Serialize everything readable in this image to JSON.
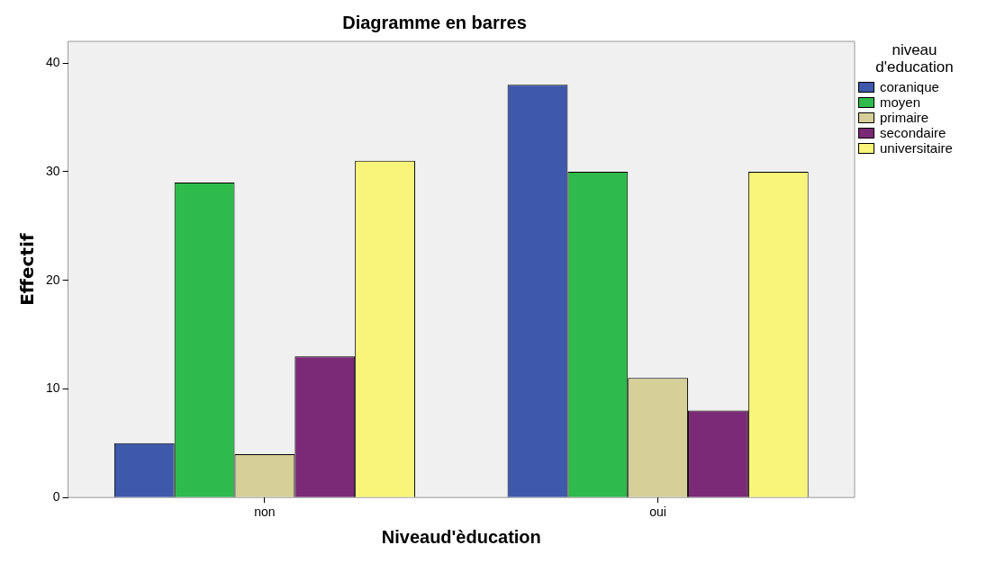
{
  "chart_data": {
    "type": "bar",
    "title": "Diagramme en barres",
    "xlabel": "Niveaud'èducation",
    "ylabel": "Effectif",
    "legend_title": "niveau d'education",
    "legend": "right",
    "grid": false,
    "categories": [
      "non",
      "oui"
    ],
    "ylim": [
      0,
      42
    ],
    "yticks": [
      0,
      10,
      20,
      30,
      40
    ],
    "series": [
      {
        "name": "coranique",
        "color": "#3e58ac",
        "values": [
          5,
          38
        ]
      },
      {
        "name": "moyen",
        "color": "#2fba4c",
        "values": [
          29,
          30
        ]
      },
      {
        "name": "primaire",
        "color": "#d6cf98",
        "values": [
          4,
          11
        ]
      },
      {
        "name": "secondaire",
        "color": "#7b2a77",
        "values": [
          13,
          8
        ]
      },
      {
        "name": "universitaire",
        "color": "#f9f57a",
        "values": [
          31,
          30
        ]
      }
    ]
  }
}
